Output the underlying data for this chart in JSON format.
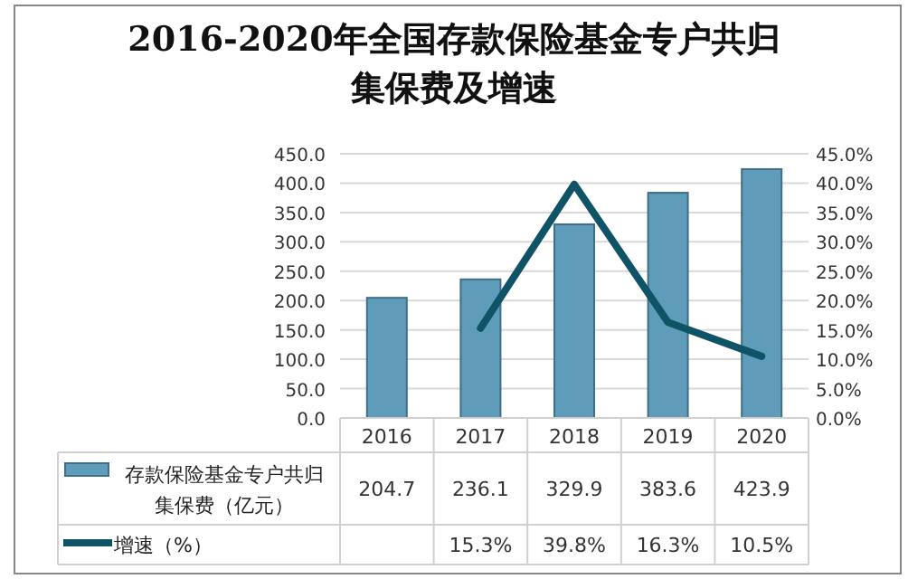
{
  "chart_data": {
    "type": "bar",
    "title": "2016-2020年全国存款保险基金专户共归集保费及增速",
    "categories": [
      "2016",
      "2017",
      "2018",
      "2019",
      "2020"
    ],
    "series": [
      {
        "name": "存款保险基金专户共归集保费（亿元）",
        "color": "#5e9cba",
        "values": [
          204.7,
          236.1,
          329.9,
          383.6,
          423.9
        ],
        "value_labels": [
          "204.7",
          "236.1",
          "329.9",
          "383.6",
          "423.9"
        ]
      },
      {
        "name": "增速（%）",
        "type": "line",
        "axis": "y2",
        "color": "#0f5366",
        "values": [
          null,
          15.3,
          39.8,
          16.3,
          10.5
        ],
        "value_labels": [
          null,
          "15.3%",
          "39.8%",
          "16.3%",
          "10.5%"
        ]
      }
    ],
    "ylim": [
      0,
      450
    ],
    "yticks": [
      {
        "value": 0,
        "label": "0.0"
      },
      {
        "value": 50,
        "label": "50.0"
      },
      {
        "value": 100,
        "label": "100.0"
      },
      {
        "value": 150,
        "label": "150.0"
      },
      {
        "value": 200,
        "label": "200.0"
      },
      {
        "value": 250,
        "label": "250.0"
      },
      {
        "value": 300,
        "label": "300.0"
      },
      {
        "value": 350,
        "label": "350.0"
      },
      {
        "value": 400,
        "label": "400.0"
      },
      {
        "value": 450,
        "label": "450.0"
      }
    ],
    "y2lim": [
      0,
      45
    ],
    "y2ticks": [
      {
        "value": 0,
        "label": "0.0%"
      },
      {
        "value": 5,
        "label": "5.0%"
      },
      {
        "value": 10,
        "label": "10.0%"
      },
      {
        "value": 15,
        "label": "15.0%"
      },
      {
        "value": 20,
        "label": "20.0%"
      },
      {
        "value": 25,
        "label": "25.0%"
      },
      {
        "value": 30,
        "label": "30.0%"
      },
      {
        "value": 35,
        "label": "35.0%"
      },
      {
        "value": 40,
        "label": "40.0%"
      },
      {
        "value": 45,
        "label": "45.0%"
      }
    ],
    "grid": "y",
    "legend": "bottom",
    "marker": "none"
  }
}
